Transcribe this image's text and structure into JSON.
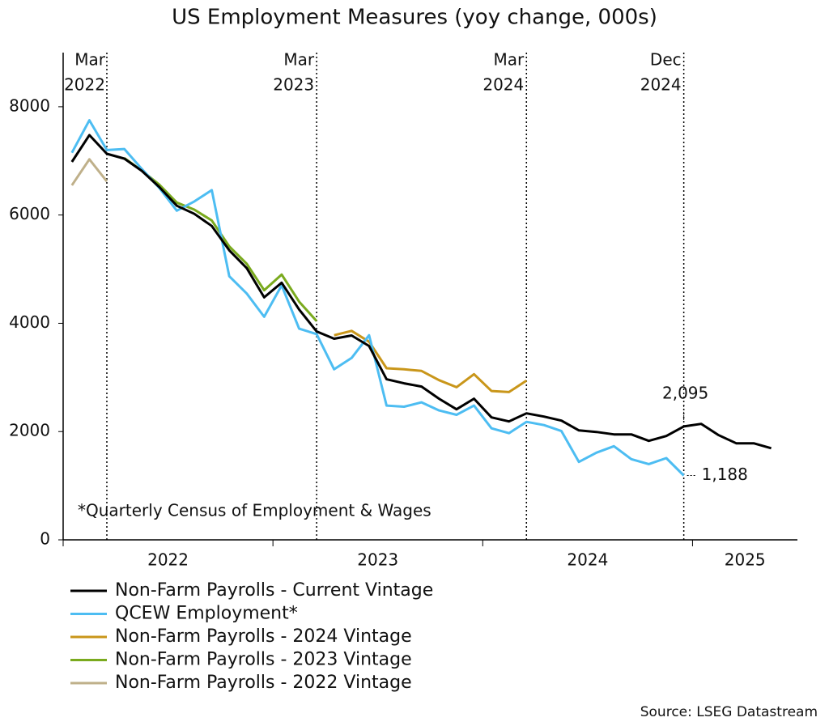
{
  "chart_data": {
    "type": "line",
    "title": "US Employment Measures (yoy change, 000s)",
    "x": [
      "2022-01",
      "2022-02",
      "2022-03",
      "2022-04",
      "2022-05",
      "2022-06",
      "2022-07",
      "2022-08",
      "2022-09",
      "2022-10",
      "2022-11",
      "2022-12",
      "2023-01",
      "2023-02",
      "2023-03",
      "2023-04",
      "2023-05",
      "2023-06",
      "2023-07",
      "2023-08",
      "2023-09",
      "2023-10",
      "2023-11",
      "2023-12",
      "2024-01",
      "2024-02",
      "2024-03",
      "2024-04",
      "2024-05",
      "2024-06",
      "2024-07",
      "2024-08",
      "2024-09",
      "2024-10",
      "2024-11",
      "2024-12",
      "2025-01",
      "2025-02",
      "2025-03",
      "2025-04",
      "2025-05"
    ],
    "series": [
      {
        "name": "Non-Farm Payrolls - Current Vintage",
        "color": "#000000",
        "values": [
          6981,
          7476,
          7131,
          7041,
          6816,
          6517,
          6172,
          6022,
          5798,
          5348,
          5019,
          4479,
          4749,
          4255,
          3850,
          3715,
          3775,
          3580,
          2966,
          2891,
          2831,
          2607,
          2412,
          2607,
          2262,
          2187,
          2337,
          2277,
          2202,
          2022,
          1993,
          1948,
          1948,
          1828,
          1918,
          2095,
          2142,
          1933,
          1783,
          1783,
          1693
        ],
        "value_labels": [
          null,
          null,
          null,
          null,
          null,
          null,
          null,
          null,
          null,
          null,
          null,
          null,
          null,
          null,
          null,
          null,
          null,
          null,
          null,
          null,
          null,
          null,
          null,
          null,
          null,
          null,
          null,
          null,
          null,
          null,
          null,
          null,
          null,
          null,
          null,
          "2,095",
          null,
          null,
          null,
          null,
          null
        ]
      },
      {
        "name": "QCEW Employment*",
        "color": "#4dbdf2",
        "values": [
          7150,
          7750,
          7200,
          7220,
          6850,
          6500,
          6080,
          6250,
          6460,
          4870,
          4550,
          4120,
          4700,
          3900,
          3800,
          3150,
          3360,
          3780,
          2480,
          2460,
          2540,
          2390,
          2310,
          2480,
          2060,
          1970,
          2180,
          2120,
          2010,
          1440,
          1610,
          1730,
          1490,
          1400,
          1510,
          1188,
          null,
          null,
          null,
          null,
          null
        ],
        "value_labels": [
          null,
          null,
          null,
          null,
          null,
          null,
          null,
          null,
          null,
          null,
          null,
          null,
          null,
          null,
          null,
          null,
          null,
          null,
          null,
          null,
          null,
          null,
          null,
          null,
          null,
          null,
          null,
          null,
          null,
          null,
          null,
          null,
          null,
          null,
          null,
          "1,188",
          null,
          null,
          null,
          null,
          null
        ]
      },
      {
        "name": "Non-Farm Payrolls - 2024 Vintage",
        "color": "#c9961a",
        "values": [
          null,
          null,
          null,
          null,
          null,
          null,
          null,
          null,
          null,
          null,
          null,
          null,
          null,
          null,
          null,
          3780,
          3860,
          3660,
          3170,
          3150,
          3120,
          2950,
          2820,
          3060,
          2750,
          2730,
          2940,
          null,
          null,
          null,
          null,
          null,
          null,
          null,
          null,
          null,
          null,
          null,
          null,
          null,
          null
        ]
      },
      {
        "name": "Non-Farm Payrolls - 2023 Vintage",
        "color": "#7aaa1e",
        "values": [
          null,
          null,
          null,
          7050,
          6820,
          6560,
          6230,
          6100,
          5900,
          5420,
          5100,
          4610,
          4900,
          4400,
          4040,
          null,
          null,
          null,
          null,
          null,
          null,
          null,
          null,
          null,
          null,
          null,
          null,
          null,
          null,
          null,
          null,
          null,
          null,
          null,
          null,
          null,
          null,
          null,
          null,
          null,
          null
        ]
      },
      {
        "name": "Non-Farm Payrolls - 2022 Vintage",
        "color": "#bfb08a",
        "values": [
          6550,
          7030,
          6620,
          null,
          null,
          null,
          null,
          null,
          null,
          null,
          null,
          null,
          null,
          null,
          null,
          null,
          null,
          null,
          null,
          null,
          null,
          null,
          null,
          null,
          null,
          null,
          null,
          null,
          null,
          null,
          null,
          null,
          null,
          null,
          null,
          null,
          null,
          null,
          null,
          null,
          null
        ]
      }
    ],
    "xlim": [
      "2022-01",
      "2025-07"
    ],
    "xticks": [
      {
        "value": "2022-01",
        "label": "2022"
      },
      {
        "value": "2023-01",
        "label": "2023"
      },
      {
        "value": "2024-01",
        "label": "2024"
      },
      {
        "value": "2025-01",
        "label": "2025"
      }
    ],
    "ylim": [
      0,
      9000
    ],
    "yticks": [
      0,
      2000,
      4000,
      6000,
      8000
    ],
    "grid": false,
    "vlines": [
      {
        "x": "2022-03",
        "label": [
          "Mar",
          "2022"
        ]
      },
      {
        "x": "2023-03",
        "label": [
          "Mar",
          "2023"
        ]
      },
      {
        "x": "2024-03",
        "label": [
          "Mar",
          "2024"
        ]
      },
      {
        "x": "2024-12",
        "label": [
          "Dec",
          "2024"
        ]
      }
    ],
    "note": "*Quarterly Census of Employment & Wages",
    "source": "Source: LSEG Datastream"
  }
}
